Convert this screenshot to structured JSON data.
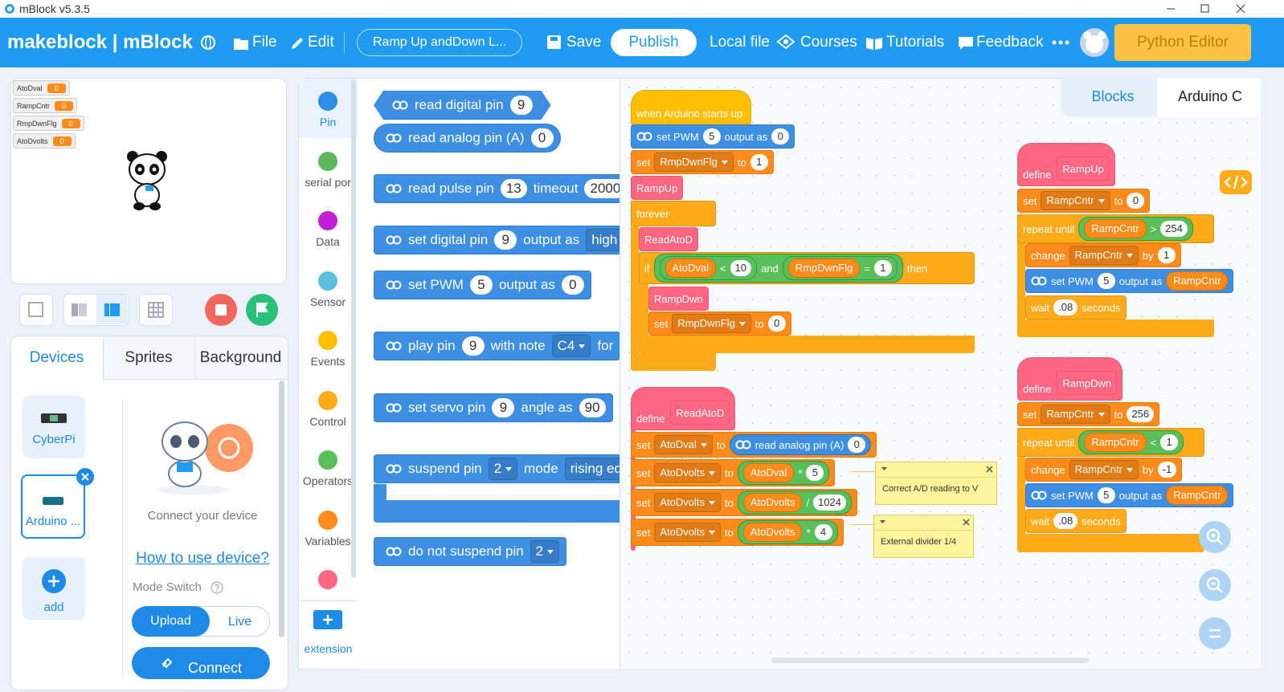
{
  "window": {
    "title": "mBlock v5.3.5"
  },
  "menu": {
    "brand": "makeblock | mBlock",
    "file": "File",
    "edit": "Edit",
    "project": "Ramp Up andDown L...",
    "save": "Save",
    "publish": "Publish",
    "local": "Local file",
    "courses": "Courses",
    "tutorials": "Tutorials",
    "feedback": "Feedback",
    "python": "Python Editor"
  },
  "stage": {
    "variables": [
      {
        "name": "AtoDval",
        "value": 0
      },
      {
        "name": "RampCntr",
        "value": 0
      },
      {
        "name": "RmpDwnFlg",
        "value": 0
      },
      {
        "name": "AtoDvolts",
        "value": 0
      }
    ]
  },
  "tabs": [
    "Devices",
    "Sprites",
    "Background"
  ],
  "devices": [
    "CyberPi",
    "Arduino ...",
    "add"
  ],
  "device_panel": {
    "connect_text": "Connect your device",
    "help_link": "How to use device?",
    "mode_switch": "Mode Switch",
    "modes": [
      "Upload",
      "Live"
    ],
    "connect": "Connect"
  },
  "categories": [
    "Pin",
    "serial por",
    "Data",
    "Sensor",
    "Events",
    "Control",
    "Operators",
    "Variables"
  ],
  "extension": "extension",
  "palette": [
    [
      {
        "text": "read digital pin"
      },
      {
        "num": 9
      }
    ],
    [
      {
        "text": "read analog pin  (A)"
      },
      {
        "num": 0
      }
    ],
    [
      {
        "text": "read pulse pin"
      },
      {
        "num": 13
      },
      {
        "text": "timeout"
      },
      {
        "num": 2000
      }
    ],
    [
      {
        "text": "set digital pin"
      },
      {
        "num": 9
      },
      {
        "text": "output as"
      },
      {
        "menu": "high"
      }
    ],
    [
      {
        "text": "set PWM"
      },
      {
        "num": 5
      },
      {
        "text": "output as"
      },
      {
        "num": 0
      }
    ],
    [
      {
        "text": "play pin"
      },
      {
        "num": 9
      },
      {
        "text": "with note"
      },
      {
        "menu": "C4"
      },
      {
        "text": "for"
      }
    ],
    [
      {
        "text": "set servo pin"
      },
      {
        "num": 9
      },
      {
        "text": "angle as"
      },
      {
        "num": 90
      }
    ],
    [
      {
        "text": "suspend pin"
      },
      {
        "menu": 2
      },
      {
        "text": "mode"
      },
      {
        "menu": "rising ed"
      }
    ],
    [
      {
        "text": "do not suspend pin"
      },
      {
        "menu": 2
      }
    ]
  ],
  "code_tabs": [
    "Blocks",
    "Arduino C"
  ],
  "scripts": [
    {
      "rows": [
        [
          {
            "text": "when Arduino starts up"
          }
        ],
        [
          {
            "text": "set PWM"
          },
          {
            "num": 5
          },
          {
            "text": "output as"
          },
          {
            "num": 0
          }
        ],
        [
          {
            "text": "set"
          },
          {
            "menu": "RmpDwnFlg"
          },
          {
            "text": "to"
          },
          {
            "num": 1
          }
        ],
        [
          {
            "text": "RampUp"
          }
        ],
        [
          {
            "text": "forever"
          }
        ],
        [
          {
            "text": "ReadAtoD"
          }
        ],
        [
          {
            "text": "if"
          },
          {
            "op": [
              {
                "op": [
                  {
                    "var": "AtoDval"
                  },
                  {
                    "text": "<"
                  },
                  {
                    "num": 10
                  }
                ]
              },
              {
                "text": "and"
              },
              {
                "op": [
                  {
                    "var": "RmpDwnFlg"
                  },
                  {
                    "text": "="
                  },
                  {
                    "num": 1
                  }
                ]
              }
            ]
          },
          {
            "text": "then"
          }
        ],
        [
          {
            "text": "RampDwn"
          }
        ],
        [
          {
            "text": "set"
          },
          {
            "menu": "RmpDwnFlg"
          },
          {
            "text": "to"
          },
          {
            "num": 0
          }
        ]
      ]
    },
    {
      "rows": [
        [
          {
            "text": "define"
          },
          {
            "text": "ReadAtoD"
          }
        ],
        [
          {
            "text": "set"
          },
          {
            "menu": "AtoDval"
          },
          {
            "text": "to"
          },
          {
            "pin": [
              {
                "text": "read analog pin  (A)"
              },
              {
                "num": 0
              }
            ]
          }
        ],
        [
          {
            "text": "set"
          },
          {
            "menu": "AtoDvolts"
          },
          {
            "text": "to"
          },
          {
            "op": [
              {
                "var": "AtoDval"
              },
              {
                "text": "*"
              },
              {
                "num": 5
              }
            ]
          }
        ],
        [
          {
            "text": "set"
          },
          {
            "menu": "AtoDvolts"
          },
          {
            "text": "to"
          },
          {
            "op": [
              {
                "var": "AtoDvolts"
              },
              {
                "text": "/"
              },
              {
                "num": 1024
              }
            ]
          }
        ],
        [
          {
            "text": "set"
          },
          {
            "menu": "AtoDvolts"
          },
          {
            "text": "to"
          },
          {
            "op": [
              {
                "var": "AtoDvolts"
              },
              {
                "text": "*"
              },
              {
                "num": 4
              }
            ]
          }
        ]
      ],
      "comments": [
        "Correct A/D reading to V",
        "External divider 1/4"
      ]
    },
    {
      "rows": [
        [
          {
            "text": "define"
          },
          {
            "text": "RampUp"
          }
        ],
        [
          {
            "text": "set"
          },
          {
            "menu": "RampCntr"
          },
          {
            "text": "to"
          },
          {
            "num": 0
          }
        ],
        [
          {
            "text": "repeat until"
          },
          {
            "op": [
              {
                "var": "RampCntr"
              },
              {
                "text": ">"
              },
              {
                "num": 254
              }
            ]
          }
        ],
        [
          {
            "text": "change"
          },
          {
            "menu": "RampCntr"
          },
          {
            "text": "by"
          },
          {
            "num": 1
          }
        ],
        [
          {
            "text": "set PWM"
          },
          {
            "num": 5
          },
          {
            "text": "output as"
          },
          {
            "var": "RampCntr"
          }
        ],
        [
          {
            "text": "wait"
          },
          {
            "num": ".08"
          },
          {
            "text": "seconds"
          }
        ]
      ]
    },
    {
      "rows": [
        [
          {
            "text": "define"
          },
          {
            "text": "RampDwn"
          }
        ],
        [
          {
            "text": "set"
          },
          {
            "menu": "RampCntr"
          },
          {
            "text": "to"
          },
          {
            "num": 256
          }
        ],
        [
          {
            "text": "repeat until"
          },
          {
            "op": [
              {
                "var": "RampCntr"
              },
              {
                "text": "<"
              },
              {
                "num": 1
              }
            ]
          }
        ],
        [
          {
            "text": "change"
          },
          {
            "menu": "RampCntr"
          },
          {
            "text": "by"
          },
          {
            "num": -1
          }
        ],
        [
          {
            "text": "set PWM"
          },
          {
            "num": 5
          },
          {
            "text": "output as"
          },
          {
            "var": "RampCntr"
          }
        ],
        [
          {
            "text": "wait"
          },
          {
            "num": ".08"
          },
          {
            "text": "seconds"
          }
        ]
      ]
    }
  ]
}
